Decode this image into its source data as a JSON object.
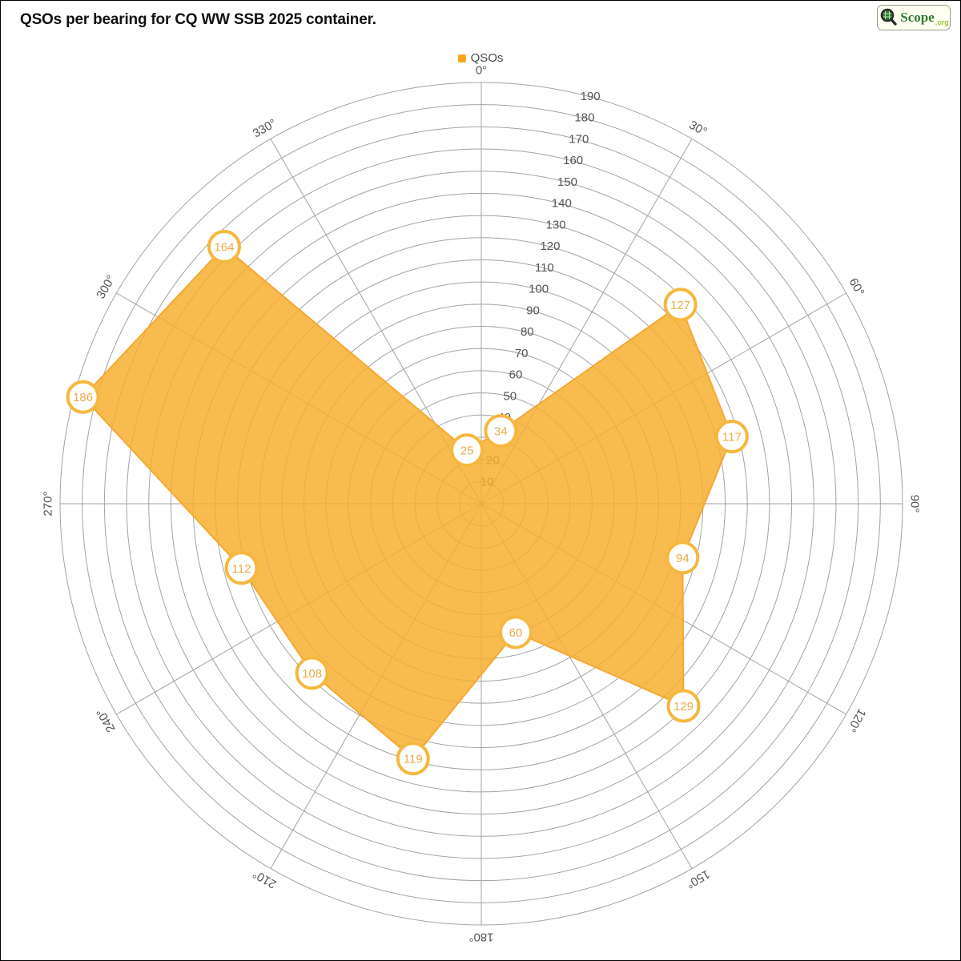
{
  "header": {
    "title": "QSOs per bearing for CQ WW SSB 2025 container."
  },
  "logo": {
    "brand": "Scope",
    "suffix": ".org",
    "icon": "magnifier-globe-icon"
  },
  "legend": {
    "label": "QSOs",
    "swatch_color": "#f6a61f"
  },
  "chart_data": {
    "type": "area",
    "polar": true,
    "title": "QSOs per bearing for CQ WW SSB 2025 container.",
    "legend_entries": [
      "QSOs"
    ],
    "series": [
      {
        "name": "QSOs",
        "bearings_deg": [
          15,
          45,
          75,
          105,
          135,
          165,
          195,
          225,
          255,
          285,
          315,
          345
        ],
        "values": [
          34,
          127,
          117,
          94,
          129,
          60,
          119,
          108,
          112,
          186,
          164,
          25
        ]
      }
    ],
    "angle_tick_deg": [
      0,
      30,
      60,
      90,
      120,
      150,
      180,
      210,
      240,
      270,
      300,
      330
    ],
    "angle_tick_labels": [
      "0°",
      "30°",
      "60°",
      "90°",
      "120°",
      "150°",
      "180°",
      "210°",
      "240°",
      "270°",
      "300°",
      "330°"
    ],
    "radial_ticks": [
      10,
      20,
      30,
      40,
      50,
      60,
      70,
      80,
      90,
      100,
      110,
      120,
      130,
      140,
      150,
      160,
      170,
      180,
      190
    ],
    "radial_tick_angle_deg": 15,
    "rlim": [
      0,
      190
    ],
    "grid": true,
    "legend_position": "top-center",
    "colors": {
      "fill": "#f5ae2e",
      "fill_opacity": 0.84,
      "stroke": "#f3a932",
      "marker_border": "#f5b83d",
      "marker_fill": "#ffffff",
      "marker_text": "#ecab49",
      "grid_line": "#a3a3a3",
      "tick_text": "#555555"
    }
  }
}
